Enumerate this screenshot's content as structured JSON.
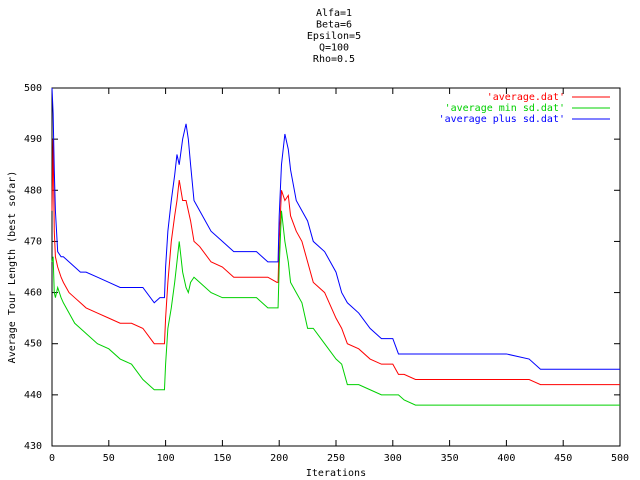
{
  "chart_data": {
    "type": "line",
    "title": [
      "Alfa=1",
      "Beta=6",
      "Epsilon=5",
      "Q=100",
      "Rho=0.5"
    ],
    "x_label": "Iterations",
    "y_label": "Average Tour Length (best sofar)",
    "xlim": [
      0,
      500
    ],
    "xticks": [
      0,
      50,
      100,
      150,
      200,
      250,
      300,
      350,
      400,
      450,
      500
    ],
    "ylim": [
      430,
      500
    ],
    "yticks": [
      430,
      440,
      450,
      460,
      470,
      480,
      490,
      500
    ],
    "grid": false,
    "legend": "top-right",
    "x": [
      0,
      1,
      2,
      3,
      5,
      8,
      10,
      15,
      20,
      25,
      30,
      40,
      50,
      60,
      70,
      80,
      90,
      95,
      99,
      100,
      102,
      105,
      108,
      110,
      112,
      115,
      118,
      120,
      122,
      125,
      130,
      140,
      150,
      160,
      170,
      180,
      190,
      198,
      199,
      200,
      202,
      205,
      208,
      210,
      215,
      220,
      225,
      230,
      240,
      250,
      255,
      260,
      270,
      280,
      290,
      300,
      305,
      310,
      320,
      350,
      400,
      420,
      430,
      450,
      500
    ],
    "series": [
      {
        "name": "'average.dat'",
        "color": "#ff0000",
        "values": [
          476,
          490,
          472,
          467,
          465,
          463,
          462,
          460,
          459,
          458,
          457,
          456,
          455,
          454,
          454,
          453,
          450,
          450,
          450,
          455,
          462,
          470,
          475,
          478,
          482,
          478,
          478,
          476,
          474,
          470,
          469,
          466,
          465,
          463,
          463,
          463,
          463,
          462,
          462,
          470,
          480,
          478,
          479,
          475,
          472,
          470,
          466,
          462,
          460,
          455,
          453,
          450,
          449,
          447,
          446,
          446,
          444,
          444,
          443,
          443,
          443,
          443,
          442,
          442,
          442
        ]
      },
      {
        "name": "'average min sd.dat'",
        "color": "#00d000",
        "values": [
          466,
          467,
          460,
          459,
          461,
          459,
          458,
          456,
          454,
          453,
          452,
          450,
          449,
          447,
          446,
          443,
          441,
          441,
          441,
          446,
          453,
          457,
          462,
          466,
          470,
          464,
          461,
          460,
          462,
          463,
          462,
          460,
          459,
          459,
          459,
          459,
          457,
          457,
          457,
          465,
          476,
          470,
          466,
          462,
          460,
          458,
          453,
          453,
          450,
          447,
          446,
          442,
          442,
          441,
          440,
          440,
          440,
          439,
          438,
          438,
          438,
          438,
          438,
          438,
          438
        ]
      },
      {
        "name": "'average plus sd.dat'",
        "color": "#0000ff",
        "values": [
          500,
          495,
          484,
          476,
          468,
          467,
          467,
          466,
          465,
          464,
          464,
          463,
          462,
          461,
          461,
          461,
          458,
          459,
          459,
          465,
          472,
          478,
          483,
          487,
          485,
          490,
          493,
          490,
          485,
          478,
          476,
          472,
          470,
          468,
          468,
          468,
          466,
          466,
          466,
          475,
          485,
          491,
          488,
          484,
          478,
          476,
          474,
          470,
          468,
          464,
          460,
          458,
          456,
          453,
          451,
          451,
          448,
          448,
          448,
          448,
          448,
          447,
          445,
          445,
          445
        ]
      }
    ]
  }
}
